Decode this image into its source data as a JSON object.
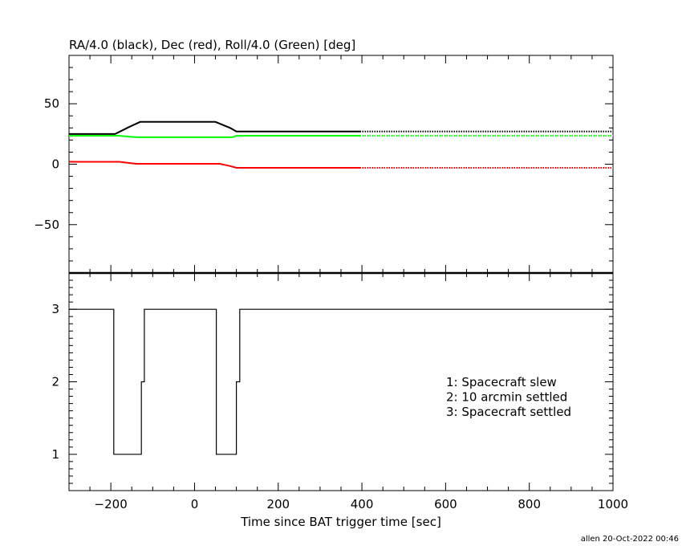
{
  "chart_data": [
    {
      "type": "line",
      "title": "RA/4.0 (black), Dec (red), Roll/4.0 (Green) [deg]",
      "ylim": [
        -90,
        90
      ],
      "xlim": [
        -300,
        1000
      ],
      "yticks": [
        50,
        0,
        -50
      ],
      "ytick_labels": [
        "50",
        "0",
        "−50"
      ],
      "series": [
        {
          "color": "#000000",
          "solid": [
            [
              -300,
              25
            ],
            [
              -190,
              25
            ],
            [
              -155,
              31
            ],
            [
              -130,
              35
            ],
            [
              50,
              35
            ],
            [
              85,
              30
            ],
            [
              100,
              27
            ],
            [
              395,
              27
            ]
          ],
          "dotted": [
            [
              395,
              27
            ],
            [
              1000,
              27
            ]
          ]
        },
        {
          "color": "#00ff00",
          "solid": [
            [
              -300,
              23.5
            ],
            [
              -180,
              23.5
            ],
            [
              -140,
              22.3
            ],
            [
              90,
              22.3
            ],
            [
              100,
              23.5
            ],
            [
              395,
              23.5
            ]
          ],
          "dotted": [
            [
              395,
              23.5
            ],
            [
              1000,
              23.5
            ]
          ]
        },
        {
          "color": "#ff0000",
          "solid": [
            [
              -300,
              2
            ],
            [
              -180,
              2
            ],
            [
              -140,
              0.3
            ],
            [
              60,
              0.3
            ],
            [
              85,
              -1.5
            ],
            [
              100,
              -3
            ],
            [
              395,
              -3
            ]
          ],
          "dotted": [
            [
              395,
              -3
            ],
            [
              1000,
              -3
            ]
          ]
        }
      ]
    },
    {
      "type": "line",
      "ylim": [
        0.5,
        3.5
      ],
      "xlim": [
        -300,
        1000
      ],
      "yticks": [
        1,
        2,
        3
      ],
      "ytick_labels": [
        "1",
        "2",
        "3"
      ],
      "xticks": [
        -200,
        0,
        200,
        400,
        600,
        800,
        1000
      ],
      "xtick_labels": [
        "−200",
        "0",
        "200",
        "400",
        "600",
        "800",
        "1000"
      ],
      "xlabel": "Time since BAT trigger time [sec]",
      "series": [
        {
          "color": "#000000",
          "step_points": [
            [
              -300,
              3
            ],
            [
              -193,
              3
            ],
            [
              -193,
              1
            ],
            [
              -127,
              1
            ],
            [
              -127,
              2
            ],
            [
              -120,
              2
            ],
            [
              -120,
              3
            ],
            [
              52,
              3
            ],
            [
              52,
              1
            ],
            [
              100,
              1
            ],
            [
              100,
              2
            ],
            [
              108,
              2
            ],
            [
              108,
              3
            ],
            [
              1000,
              3
            ]
          ]
        }
      ],
      "legend": {
        "placement": "lower-right",
        "entries": [
          "1: Spacecraft slew",
          "2: 10 arcmin settled",
          "3: Spacecraft settled"
        ]
      }
    }
  ],
  "footer": "allen 20-Oct-2022 00:46"
}
